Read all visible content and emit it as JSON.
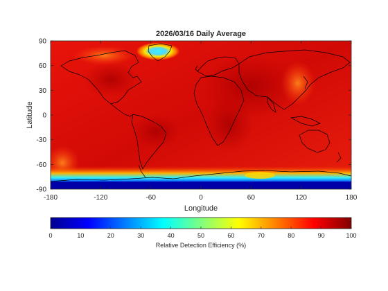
{
  "chart_data": {
    "type": "heatmap",
    "title": "2026/03/16 Daily Average",
    "xlabel": "Longitude",
    "ylabel": "Latitude",
    "xlim": [
      -180,
      180
    ],
    "ylim": [
      -90,
      90
    ],
    "xticks": [
      -180,
      -120,
      -60,
      0,
      60,
      120,
      180
    ],
    "yticks": [
      90,
      60,
      30,
      0,
      -30,
      -60,
      -90
    ],
    "colorbar": {
      "label": "Relative Detection Efficiency (%)",
      "range": [
        0,
        100
      ],
      "ticks": [
        0,
        10,
        20,
        30,
        40,
        50,
        60,
        70,
        80,
        90,
        100
      ],
      "colormap": "jet"
    },
    "description_of_values": {
      "typical_global": 92,
      "north_atlantic_greenland_min": 35,
      "antarctic_coast_min": 5,
      "southern_ocean_pacific_sector": 55
    },
    "grid": false
  }
}
